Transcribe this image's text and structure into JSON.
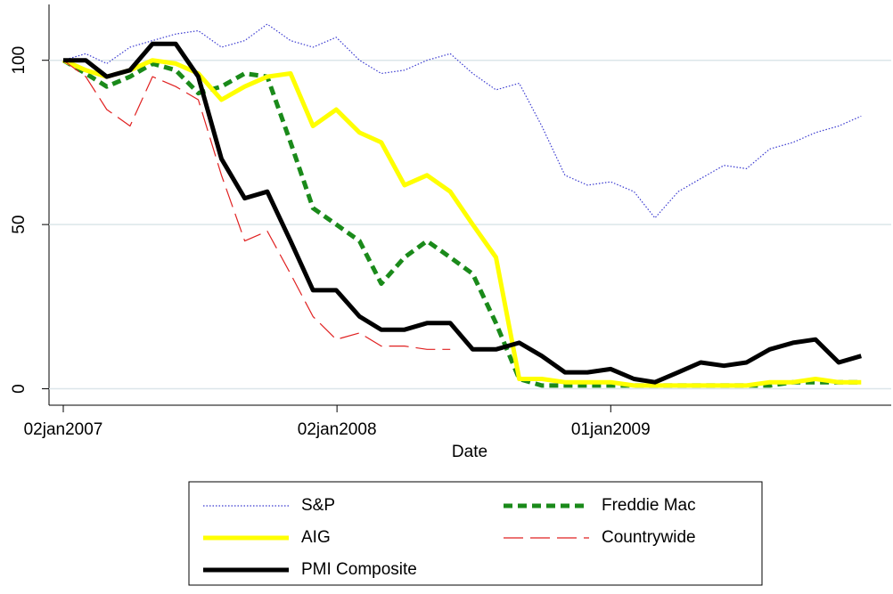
{
  "chart_data": {
    "type": "line",
    "x_label": "Date",
    "x": [
      "2007-01-02",
      "2007-02-01",
      "2007-03-01",
      "2007-04-01",
      "2007-05-01",
      "2007-06-01",
      "2007-07-01",
      "2007-08-01",
      "2007-09-01",
      "2007-10-01",
      "2007-11-01",
      "2007-12-01",
      "2008-01-01",
      "2008-02-01",
      "2008-03-01",
      "2008-04-01",
      "2008-05-01",
      "2008-06-01",
      "2008-07-01",
      "2008-08-01",
      "2008-09-01",
      "2008-10-01",
      "2008-11-01",
      "2008-12-01",
      "2009-01-01",
      "2009-02-01",
      "2009-03-01",
      "2009-04-01",
      "2009-05-01",
      "2009-06-01",
      "2009-07-01",
      "2009-08-01",
      "2009-09-01",
      "2009-10-01",
      "2009-11-01",
      "2009-12-01"
    ],
    "series": [
      {
        "name": "S&P",
        "color": "#3a3ad0",
        "style": "dotted",
        "weight": "thin",
        "values": [
          100,
          102,
          99,
          104,
          106,
          108,
          109,
          104,
          106,
          111,
          106,
          104,
          107,
          100,
          96,
          97,
          100,
          102,
          96,
          91,
          93,
          80,
          65,
          62,
          63,
          60,
          52,
          60,
          64,
          68,
          67,
          73,
          75,
          78,
          80,
          83
        ]
      },
      {
        "name": "Freddie Mac",
        "color": "#1a8a1a",
        "style": "dashed",
        "weight": "thick",
        "values": [
          100,
          96,
          92,
          95,
          99,
          97,
          90,
          92,
          96,
          95,
          75,
          55,
          50,
          45,
          32,
          40,
          45,
          40,
          35,
          20,
          3,
          1,
          1,
          1,
          1,
          1,
          1,
          1,
          1,
          1,
          1,
          1,
          2,
          2,
          2,
          2
        ]
      },
      {
        "name": "AIG",
        "color": "#ffff00",
        "style": "solid",
        "weight": "thick",
        "values": [
          100,
          97,
          95,
          97,
          100,
          99,
          96,
          88,
          92,
          95,
          96,
          80,
          85,
          78,
          75,
          62,
          65,
          60,
          50,
          40,
          3,
          3,
          2,
          2,
          2,
          1,
          1,
          1,
          1,
          1,
          1,
          2,
          2,
          3,
          2,
          2
        ]
      },
      {
        "name": "Countrywide",
        "color": "#e02020",
        "style": "longdash",
        "weight": "thin",
        "values": [
          100,
          95,
          85,
          80,
          95,
          92,
          88,
          65,
          45,
          48,
          35,
          22,
          15,
          17,
          13,
          13,
          12,
          12,
          null,
          null,
          null,
          null,
          null,
          null,
          null,
          null,
          null,
          null,
          null,
          null,
          null,
          null,
          null,
          null,
          null,
          null
        ]
      },
      {
        "name": "PMI Composite",
        "color": "#000000",
        "style": "solid",
        "weight": "thick",
        "values": [
          100,
          100,
          95,
          97,
          105,
          105,
          95,
          70,
          58,
          60,
          45,
          30,
          30,
          22,
          18,
          18,
          20,
          20,
          12,
          12,
          14,
          10,
          5,
          5,
          6,
          3,
          2,
          5,
          8,
          7,
          8,
          12,
          14,
          15,
          8,
          10
        ]
      }
    ],
    "xlim": [
      "2006-12-14",
      "2010-01-10"
    ],
    "xticks": [
      {
        "value": "2007-01-02",
        "label": "02jan2007"
      },
      {
        "value": "2008-01-02",
        "label": "02jan2008"
      },
      {
        "value": "2009-01-01",
        "label": "01jan2009"
      }
    ],
    "ylim": [
      -5,
      117
    ],
    "yticks": [
      0,
      50,
      100
    ],
    "grid": true
  }
}
